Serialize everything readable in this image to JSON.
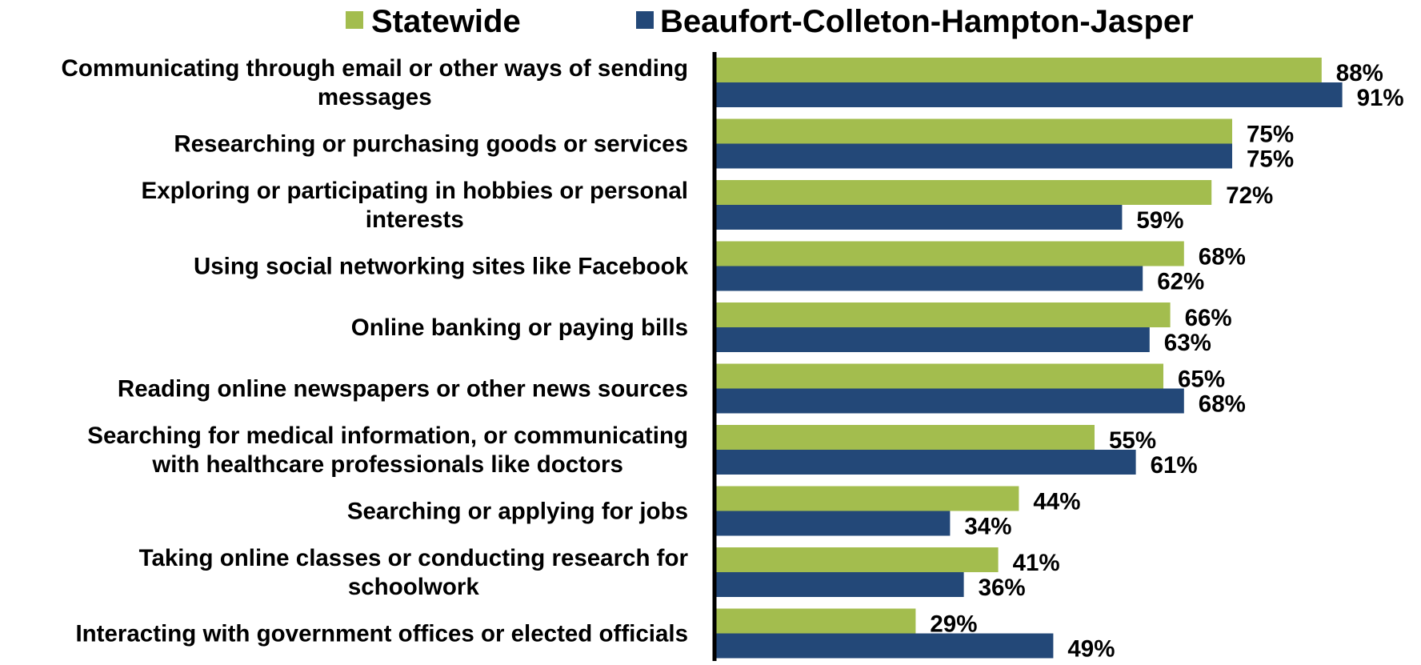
{
  "chart_data": {
    "type": "bar",
    "orientation": "horizontal",
    "categories": [
      "Communicating through email or other ways of sending messages",
      "Researching or purchasing goods or services",
      "Exploring or participating in hobbies or personal interests",
      "Using social networking sites like Facebook",
      "Online banking or paying bills",
      "Reading online newspapers or other news sources",
      "Searching for medical information, or communicating with healthcare professionals like doctors",
      "Searching or applying for jobs",
      "Taking online classes or conducting research for schoolwork",
      "Interacting with government offices or elected officials"
    ],
    "category_lines": [
      [
        "Communicating through email or other ways of sending",
        "messages"
      ],
      [
        "Researching or purchasing goods or services"
      ],
      [
        "Exploring or participating in hobbies or personal",
        "interests"
      ],
      [
        "Using social networking sites like Facebook"
      ],
      [
        "Online banking or paying bills"
      ],
      [
        "Reading online newspapers or other news sources"
      ],
      [
        "Searching for medical information, or communicating",
        "with healthcare professionals like doctors"
      ],
      [
        "Searching or applying for jobs"
      ],
      [
        "Taking online classes or conducting research for",
        "schoolwork"
      ],
      [
        "Interacting with government offices or elected officials"
      ]
    ],
    "series": [
      {
        "name": "Statewide",
        "color": "#a3bd4e",
        "values": [
          88,
          75,
          72,
          68,
          66,
          65,
          55,
          44,
          41,
          29
        ],
        "labels": [
          "88%",
          "75%",
          "72%",
          "68%",
          "66%",
          "65%",
          "55%",
          "44%",
          "41%",
          "29%"
        ]
      },
      {
        "name": "Beaufort-Colleton-Hampton-Jasper",
        "color": "#234878",
        "values": [
          91,
          75,
          59,
          62,
          63,
          68,
          61,
          34,
          36,
          49
        ],
        "labels": [
          "91%",
          "75%",
          "59%",
          "62%",
          "63%",
          "68%",
          "61%",
          "34%",
          "36%",
          "49%"
        ]
      }
    ],
    "value_unit": "%",
    "xlim": [
      0,
      100
    ],
    "grid": false,
    "legend_position": "top",
    "axis_color": "#000000"
  }
}
